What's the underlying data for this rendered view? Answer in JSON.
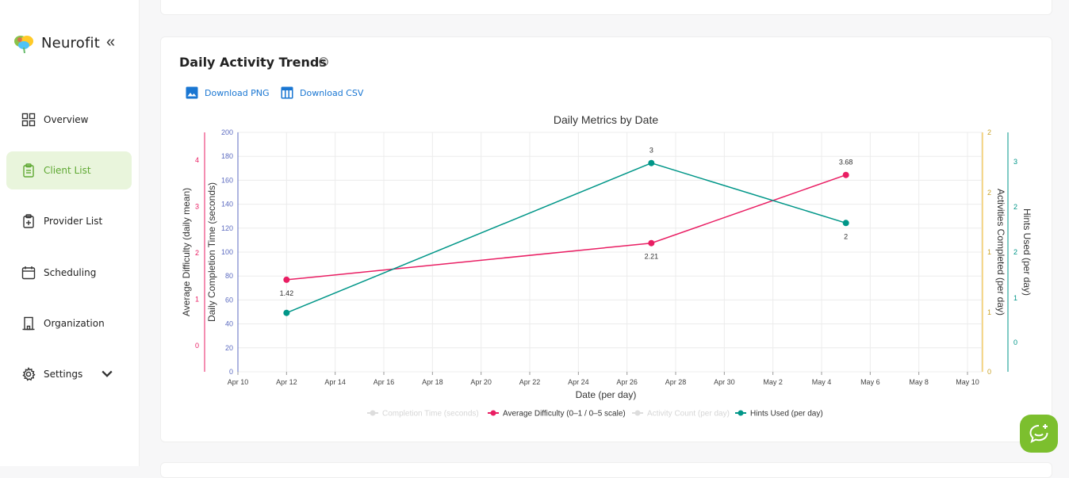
{
  "app": {
    "name": "Neurofit",
    "collapse_glyph": "«"
  },
  "sidebar": {
    "items": [
      {
        "label": "Overview",
        "icon": "grid-icon"
      },
      {
        "label": "Client List",
        "icon": "clipboard-icon",
        "active": true
      },
      {
        "label": "Provider List",
        "icon": "clipboard-plus-icon"
      },
      {
        "label": "Scheduling",
        "icon": "calendar-icon"
      },
      {
        "label": "Organization",
        "icon": "building-icon"
      },
      {
        "label": "Settings",
        "icon": "gear-icon",
        "chevron": "⌄"
      }
    ]
  },
  "card": {
    "title": "Daily Activity Trends",
    "download_png": "Download PNG",
    "download_csv": "Download CSV"
  },
  "colors": {
    "difficulty": "#e91e63",
    "completion": "#5c6bc0",
    "activities": "#fbc02d",
    "hints": "#009688",
    "accent": "#7cbf2e"
  },
  "chart_data": {
    "type": "line",
    "title": "Daily Metrics by Date",
    "xlabel": "Date (per day)",
    "x_ticks": [
      "Apr 10",
      "Apr 12",
      "Apr 14",
      "Apr 16",
      "Apr 18",
      "Apr 20",
      "Apr 22",
      "Apr 24",
      "Apr 26",
      "Apr 28",
      "Apr 30",
      "May 2",
      "May 4",
      "May 6",
      "May 8",
      "May 10"
    ],
    "axes": {
      "difficulty": {
        "label": "Average Difficulty (daily mean)",
        "ticks": [
          "0",
          "1",
          "2",
          "3",
          "4"
        ]
      },
      "completion": {
        "label": "Daily Completion Time (seconds)",
        "ticks": [
          "0",
          "20",
          "40",
          "60",
          "80",
          "100",
          "120",
          "140",
          "160",
          "180",
          "200"
        ],
        "ylim": [
          0,
          200
        ]
      },
      "activities": {
        "label": "Activities Completed (per day)",
        "ticks": [
          "0",
          "1",
          "1",
          "2",
          "2"
        ]
      },
      "hints": {
        "label": "Hints Used (per day)",
        "ticks": [
          "0",
          "1",
          "2",
          "2",
          "3"
        ]
      }
    },
    "series": [
      {
        "name": "Average Difficulty (0–1 / 0–5 scale)",
        "key": "difficulty",
        "points": [
          {
            "x": "Apr 12",
            "y": 1.42,
            "label": "1.42"
          },
          {
            "x": "Apr 27",
            "y": 2.21,
            "label": "2.21"
          },
          {
            "x": "May 5",
            "y": 3.68,
            "label": "3.68"
          }
        ]
      },
      {
        "name": "Hints Used (per day)",
        "key": "hints",
        "points": [
          {
            "x": "Apr 12",
            "y": 0.5,
            "label": ""
          },
          {
            "x": "Apr 27",
            "y": 3,
            "label": "3"
          },
          {
            "x": "May 5",
            "y": 2,
            "label": "2"
          }
        ]
      }
    ],
    "legend": [
      {
        "name": "Completion Time (seconds)",
        "key": "completion",
        "hidden": true
      },
      {
        "name": "Average Difficulty (0–1 / 0–5 scale)",
        "key": "difficulty",
        "hidden": false
      },
      {
        "name": "Activity Count (per day)",
        "key": "activities",
        "hidden": true
      },
      {
        "name": "Hints Used (per day)",
        "key": "hints",
        "hidden": false
      }
    ],
    "legend_position": "bottom"
  }
}
